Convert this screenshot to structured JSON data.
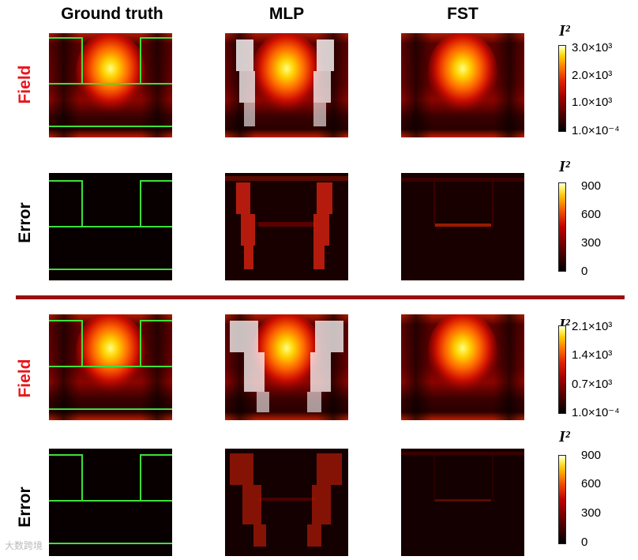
{
  "columns": {
    "ground_truth": "Ground truth",
    "mlp": "MLP",
    "fst": "FST"
  },
  "rows": {
    "field": "Field",
    "error": "Error"
  },
  "colors": {
    "field_label": "#e8161c",
    "error_label": "#000000",
    "divider": "#9a1010",
    "structure_outline": "#3ee03a"
  },
  "colorbars": [
    {
      "title": "I²",
      "type": "field",
      "ticks": [
        "3.0×10³",
        "2.0×10³",
        "1.0×10³",
        "1.0×10⁻⁴"
      ]
    },
    {
      "title": "I²",
      "type": "error",
      "ticks": [
        "900",
        "600",
        "300",
        "0"
      ]
    },
    {
      "title": "I²",
      "type": "field",
      "ticks": [
        "2.1×10³",
        "1.4×10³",
        "0.7×10³",
        "1.0×10⁻⁴"
      ]
    },
    {
      "title": "I²",
      "type": "error",
      "ticks": [
        "900",
        "600",
        "300",
        "0"
      ]
    }
  ],
  "watermark": "大数跨境"
}
